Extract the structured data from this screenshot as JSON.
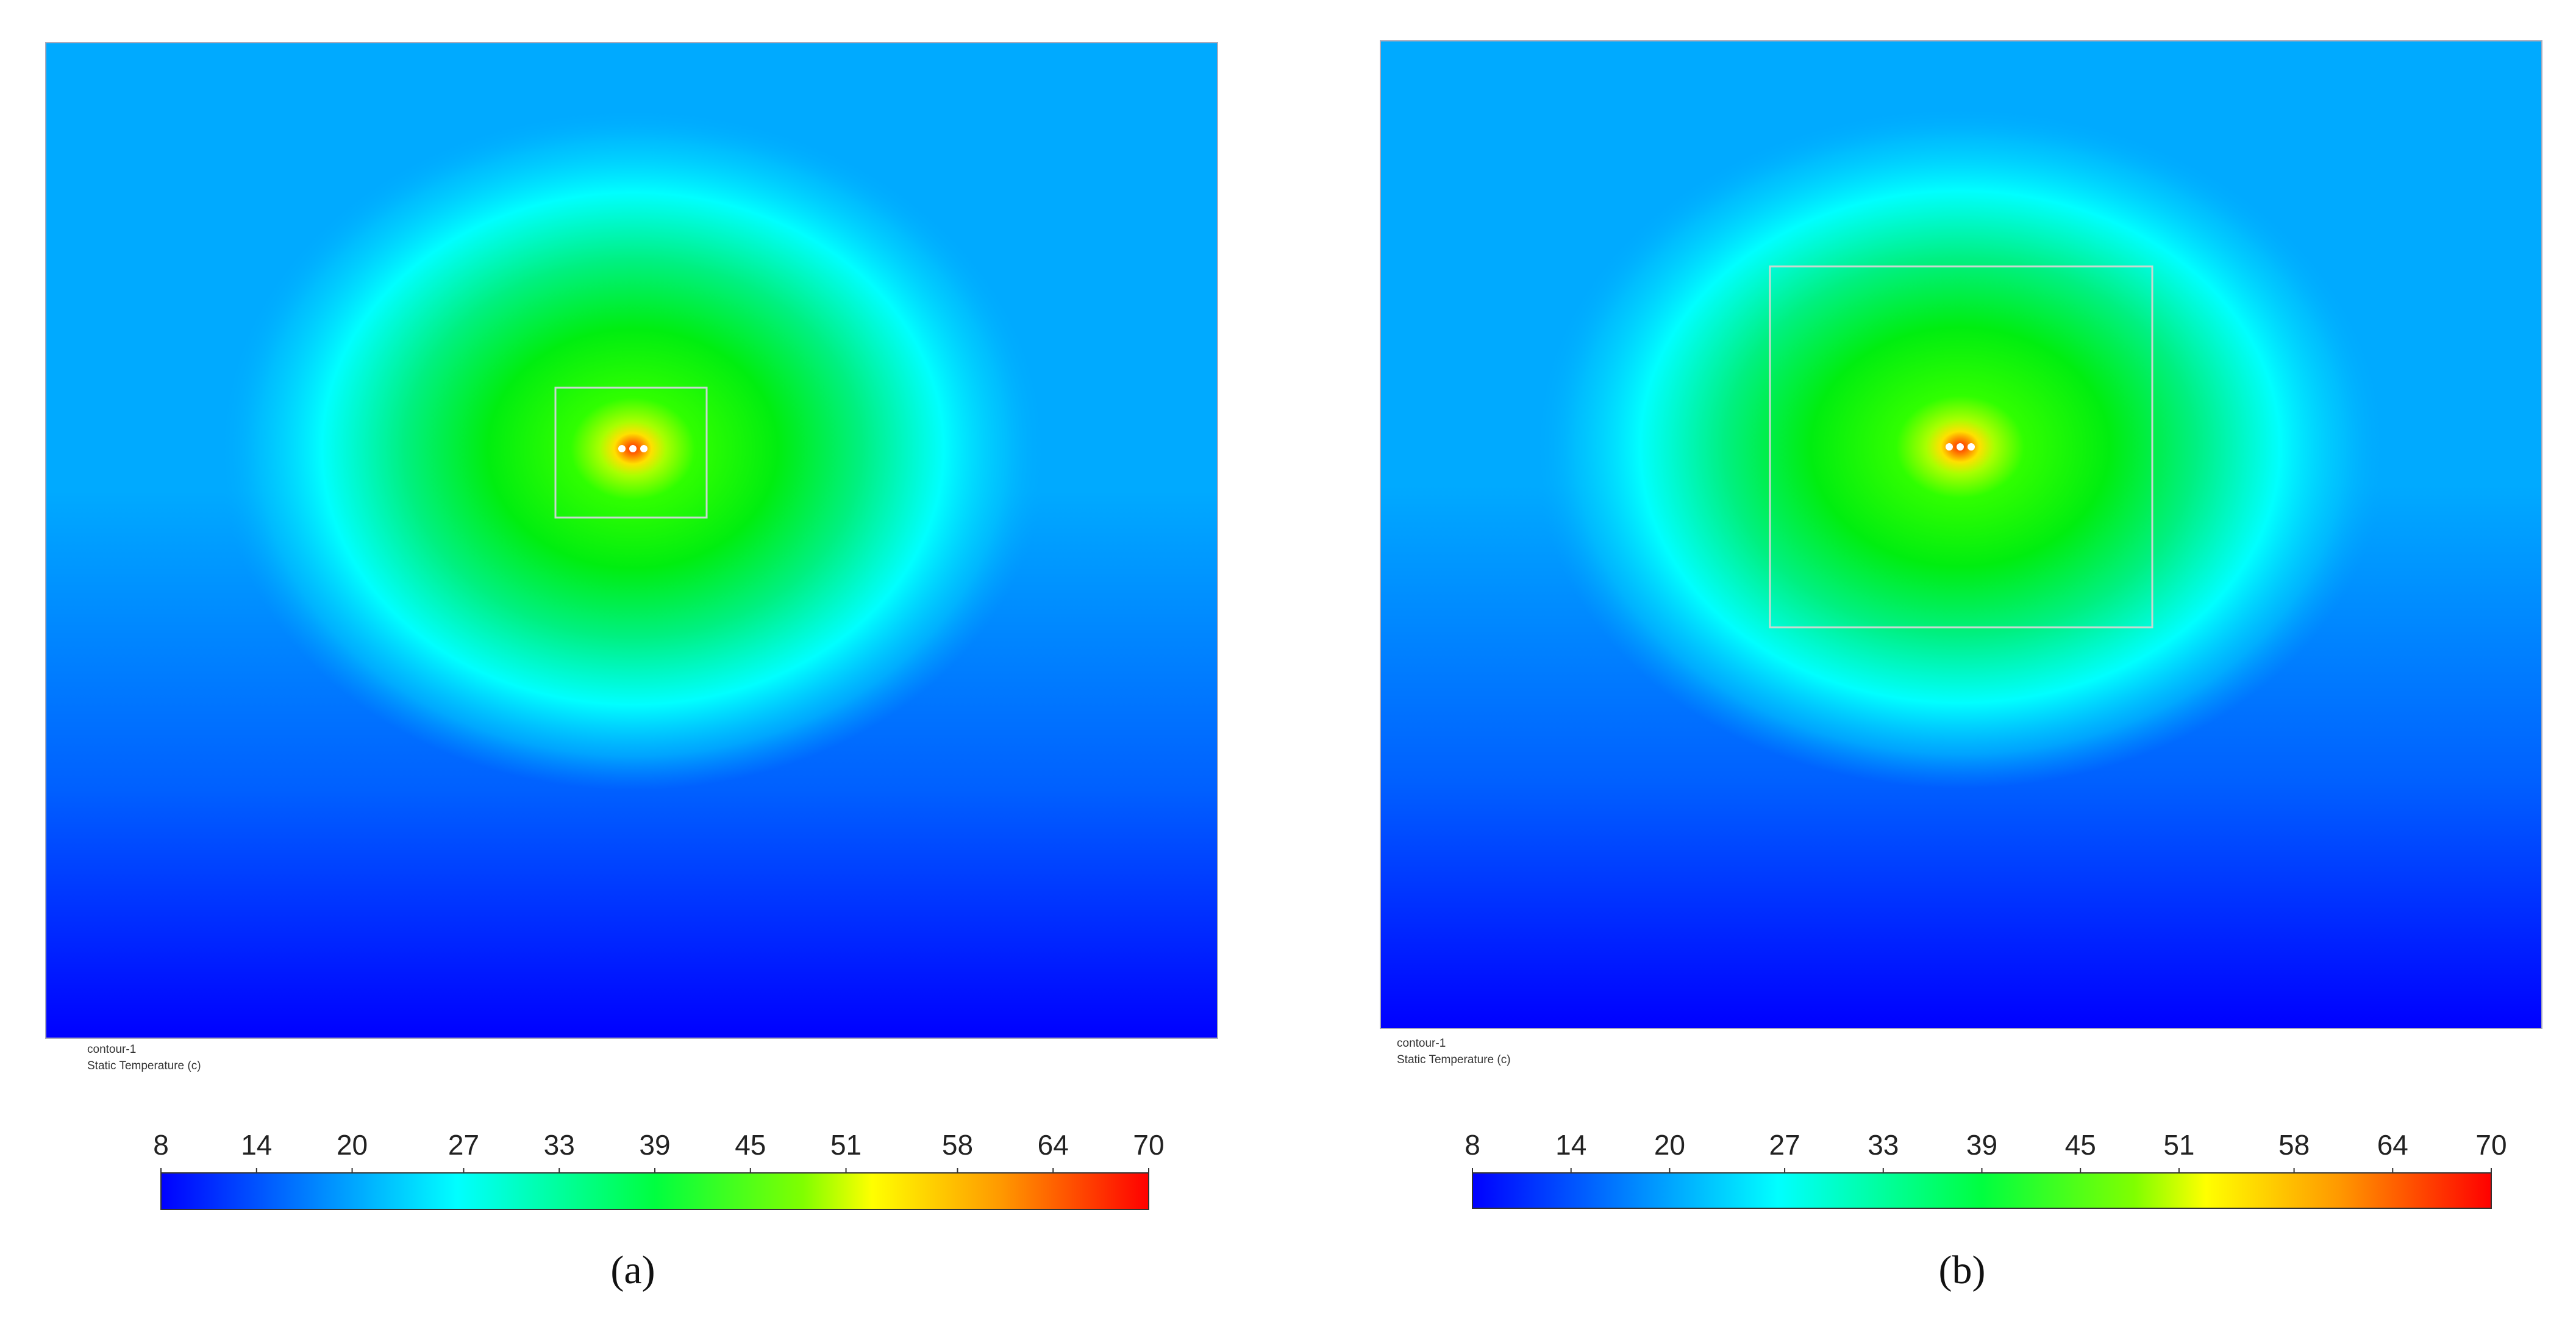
{
  "panels": [
    {
      "label": "(a)",
      "contour_name": "contour-1",
      "variable": "Static Temperature (c)",
      "colorbar": {
        "range": [
          8,
          70
        ],
        "ticks": [
          8,
          14,
          20,
          27,
          33,
          39,
          45,
          51,
          58,
          64,
          70
        ]
      }
    },
    {
      "label": "(b)",
      "contour_name": "contour-1",
      "variable": "Static Temperature (c)",
      "colorbar": {
        "range": [
          8,
          70
        ],
        "ticks": [
          8,
          14,
          20,
          27,
          33,
          39,
          45,
          51,
          58,
          64,
          70
        ]
      }
    }
  ]
}
